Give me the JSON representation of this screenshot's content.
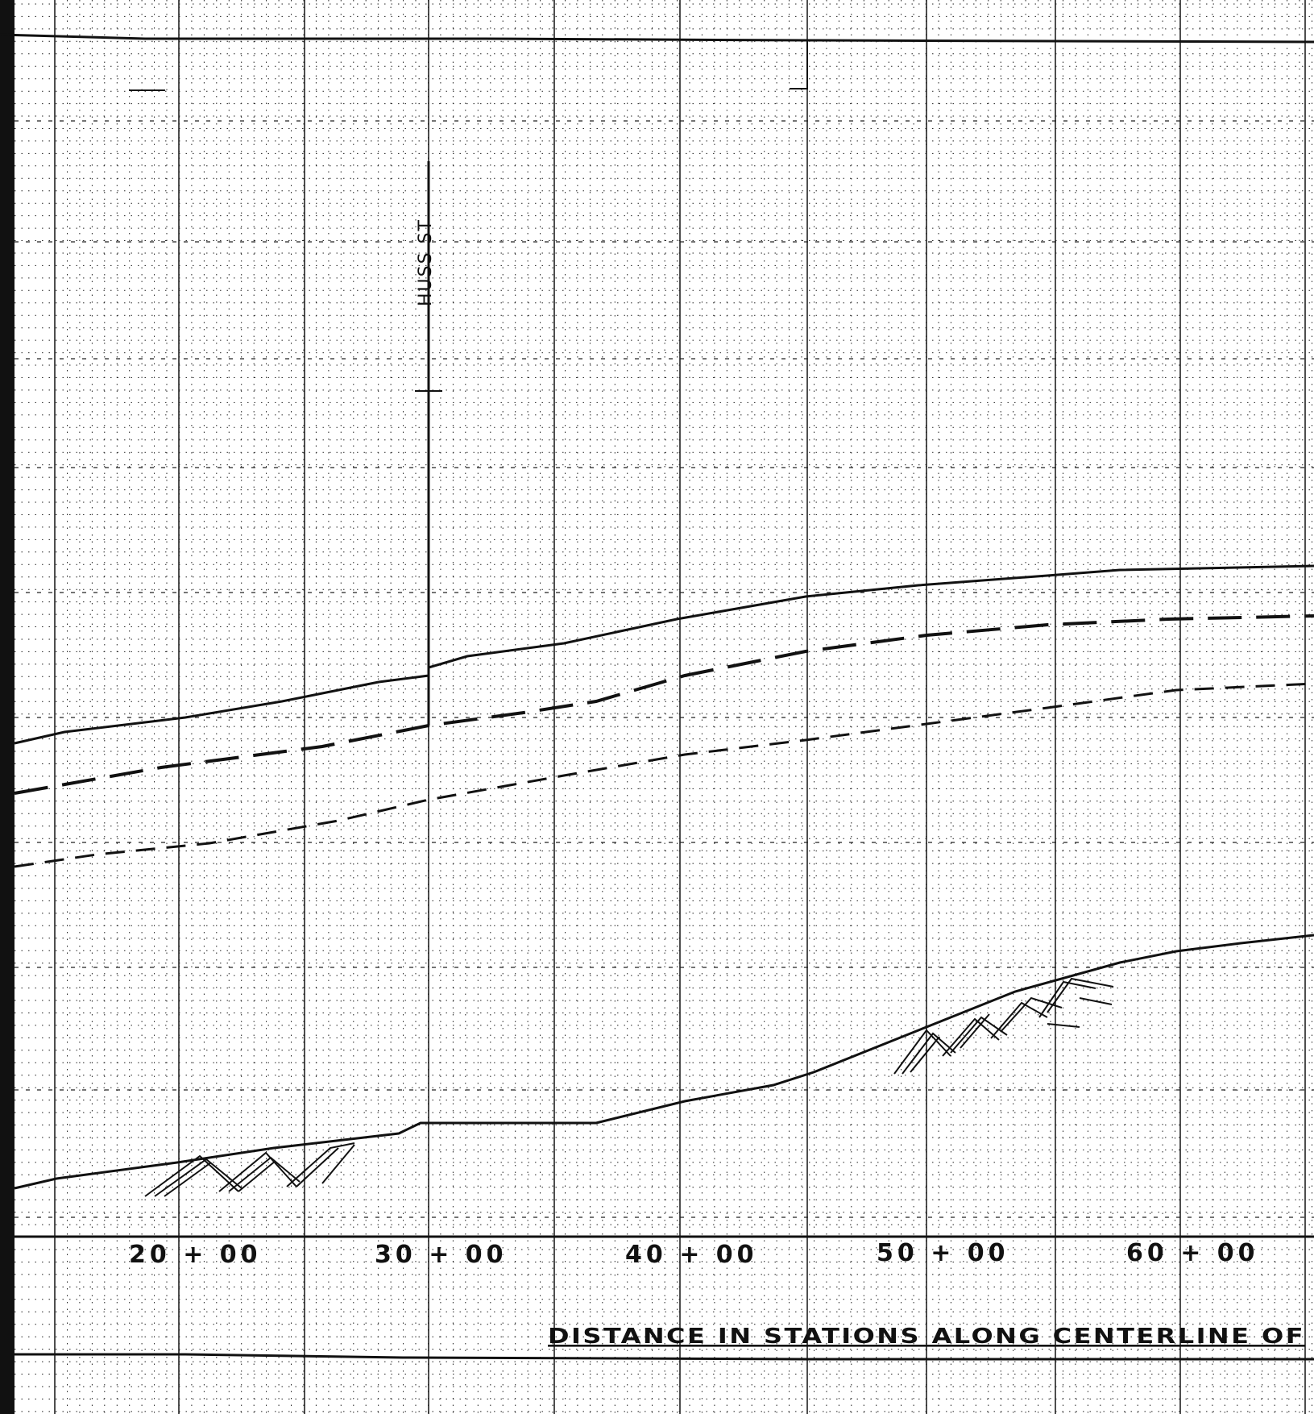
{
  "drawing": {
    "street_label": "HUSS ST",
    "axis_caption": "DISTANCE IN STATIONS ALONG CENTERLINE OF",
    "station_labels": [
      "20 + 00",
      "30 + 00",
      "40 + 00",
      "50 + 00",
      "60 + 00"
    ]
  }
}
